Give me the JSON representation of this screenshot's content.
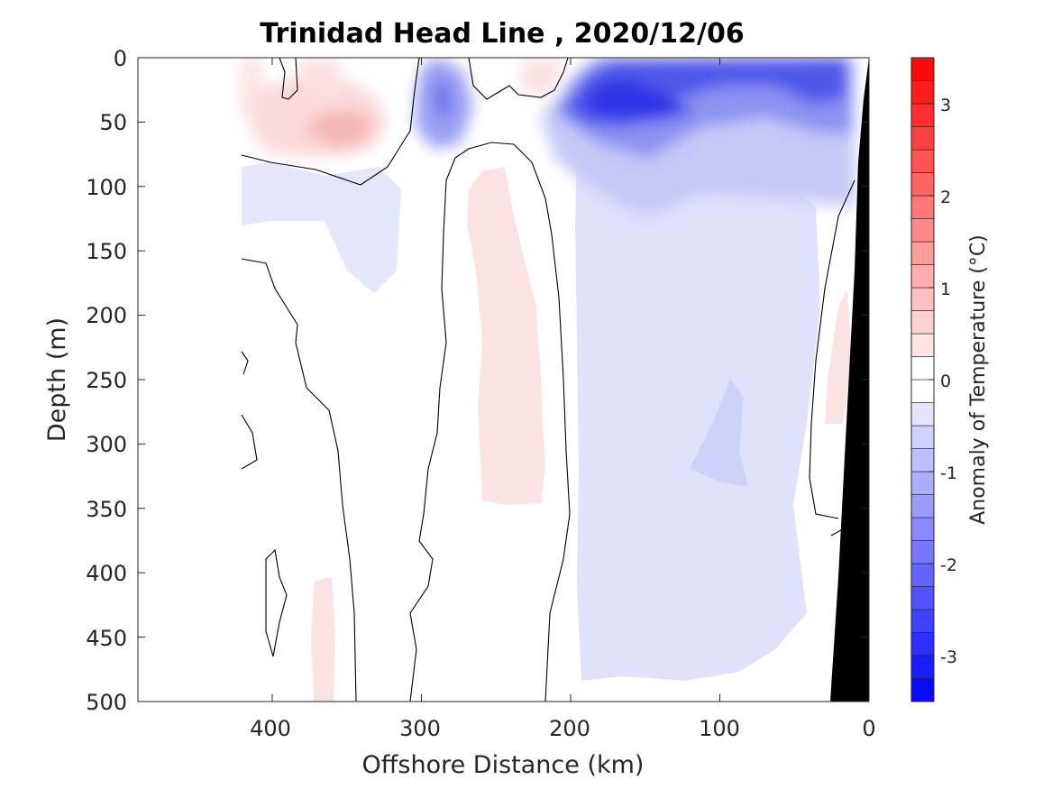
{
  "chart_data": {
    "type": "heatmap",
    "title": "Trinidad Head Line , 2020/12/06",
    "xlabel": "Offshore Distance (km)",
    "ylabel": "Depth (m)",
    "colorbar_label": "Anomaly of Temperature (°C)",
    "xlim": [
      490,
      0
    ],
    "ylim": [
      0,
      500
    ],
    "x_reversed": true,
    "y_reversed": true,
    "xticks": [
      400,
      300,
      200,
      100,
      0
    ],
    "yticks": [
      0,
      50,
      100,
      150,
      200,
      250,
      300,
      350,
      400,
      450,
      500
    ],
    "colorbar": {
      "clim": [
        -3.5,
        3.5
      ],
      "step": 0.25,
      "ticks": [
        3,
        2,
        1,
        0,
        -1,
        -2,
        -3
      ],
      "colormap": "blue-white-red",
      "negative_color": "#0000ff",
      "positive_color": "#ff0000",
      "zero_color": "#ffffff"
    },
    "colors": {
      "bathymetry": "#000000",
      "contour_line": "#000000",
      "axis": "#262626"
    },
    "zero_contour": true,
    "regions": [
      {
        "label": "cold core near surface",
        "x_range": [
          200,
          10
        ],
        "depth_range": [
          0,
          80
        ],
        "anomaly": -2.5
      },
      {
        "label": "cold subsurface pocket",
        "x_range": [
          295,
          275
        ],
        "depth_range": [
          20,
          60
        ],
        "anomaly": -1.5
      },
      {
        "label": "weak cold anomaly",
        "x_range": [
          195,
          30
        ],
        "depth_range": [
          80,
          500
        ],
        "anomaly": -0.4
      },
      {
        "label": "warm surface patch",
        "x_range": [
          420,
          320
        ],
        "depth_range": [
          20,
          80
        ],
        "anomaly": 0.8
      },
      {
        "label": "warm subsurface band",
        "x_range": [
          270,
          230
        ],
        "depth_range": [
          80,
          360
        ],
        "anomaly": 0.4
      },
      {
        "label": "weak cold patch",
        "x_range": [
          420,
          350
        ],
        "depth_range": [
          90,
          120
        ],
        "anomaly": -0.3
      },
      {
        "label": "weak warm patch",
        "x_range": [
          380,
          360
        ],
        "depth_range": [
          400,
          500
        ],
        "anomaly": 0.3
      }
    ]
  }
}
